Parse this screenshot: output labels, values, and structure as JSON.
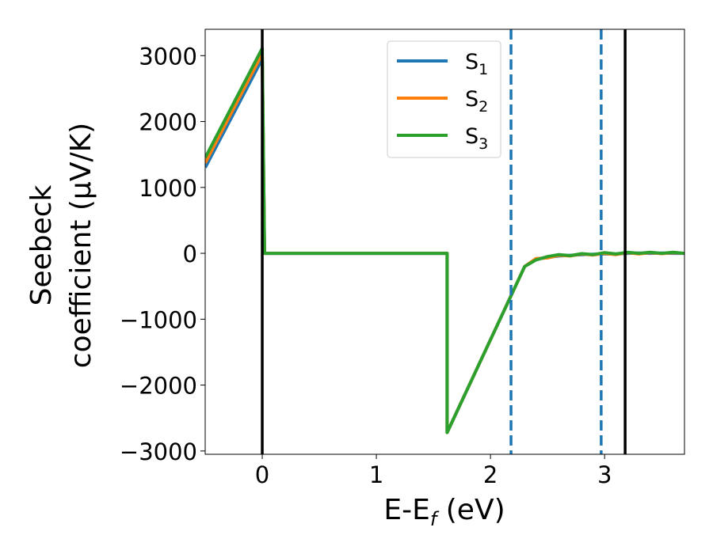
{
  "chart_data": {
    "type": "line",
    "xlabel_main": "E-E",
    "xlabel_sub": "f",
    "xlabel_unit": " (eV)",
    "ylabel_line1": "Seebeck",
    "ylabel_line2": "coefficient  (μV/K)",
    "xlim": [
      -0.5,
      3.7
    ],
    "ylim": [
      -3050,
      3400
    ],
    "xticks": [
      0,
      1,
      2,
      3
    ],
    "xtick_labels": [
      "0",
      "1",
      "2",
      "3"
    ],
    "yticks": [
      3000,
      2000,
      1000,
      0,
      -1000,
      -2000,
      -3000
    ],
    "ytick_labels": [
      "3000",
      "2000",
      "1000",
      "0",
      "−1000",
      "−2000",
      "−3000"
    ],
    "legend_placement": "upper-center",
    "grid": false,
    "series": [
      {
        "name": "S",
        "subscript": "1",
        "color": "#1f77b4",
        "points": [
          [
            -0.5,
            1300
          ],
          [
            0.0,
            2950
          ],
          [
            0.02,
            0
          ],
          [
            1.62,
            0
          ],
          [
            1.62,
            -2720
          ],
          [
            2.3,
            -200
          ],
          [
            2.4,
            -90
          ],
          [
            2.5,
            -60
          ],
          [
            2.6,
            -40
          ],
          [
            2.7,
            -30
          ],
          [
            2.8,
            -20
          ],
          [
            2.9,
            -15
          ],
          [
            3.0,
            -10
          ],
          [
            3.1,
            -10
          ],
          [
            3.2,
            0
          ],
          [
            3.3,
            5
          ],
          [
            3.4,
            0
          ],
          [
            3.5,
            5
          ],
          [
            3.6,
            0
          ],
          [
            3.7,
            0
          ]
        ]
      },
      {
        "name": "S",
        "subscript": "2",
        "color": "#ff7f0e",
        "points": [
          [
            -0.5,
            1370
          ],
          [
            0.0,
            3030
          ],
          [
            0.02,
            0
          ],
          [
            1.62,
            0
          ],
          [
            1.62,
            -2720
          ],
          [
            2.3,
            -200
          ],
          [
            2.4,
            -80
          ],
          [
            2.5,
            -70
          ],
          [
            2.6,
            -30
          ],
          [
            2.7,
            -40
          ],
          [
            2.8,
            -10
          ],
          [
            2.9,
            -25
          ],
          [
            3.0,
            0
          ],
          [
            3.1,
            -20
          ],
          [
            3.2,
            10
          ],
          [
            3.3,
            -10
          ],
          [
            3.4,
            10
          ],
          [
            3.5,
            -5
          ],
          [
            3.6,
            10
          ],
          [
            3.7,
            0
          ]
        ]
      },
      {
        "name": "S",
        "subscript": "3",
        "color": "#2ca02c",
        "points": [
          [
            -0.5,
            1450
          ],
          [
            0.0,
            3110
          ],
          [
            0.02,
            0
          ],
          [
            1.62,
            0
          ],
          [
            1.62,
            -2720
          ],
          [
            2.3,
            -200
          ],
          [
            2.4,
            -100
          ],
          [
            2.5,
            -50
          ],
          [
            2.6,
            -20
          ],
          [
            2.7,
            -35
          ],
          [
            2.8,
            -5
          ],
          [
            2.9,
            -20
          ],
          [
            3.0,
            10
          ],
          [
            3.1,
            -10
          ],
          [
            3.2,
            15
          ],
          [
            3.3,
            0
          ],
          [
            3.4,
            15
          ],
          [
            3.5,
            0
          ],
          [
            3.6,
            15
          ],
          [
            3.7,
            0
          ]
        ]
      }
    ],
    "vlines": [
      {
        "x": 0.0,
        "style": "solid",
        "color": "#000000"
      },
      {
        "x": 3.18,
        "style": "solid",
        "color": "#000000"
      },
      {
        "x": 2.18,
        "style": "dashed",
        "color": "#1f77b4"
      },
      {
        "x": 2.97,
        "style": "dashed",
        "color": "#1f77b4"
      }
    ]
  }
}
